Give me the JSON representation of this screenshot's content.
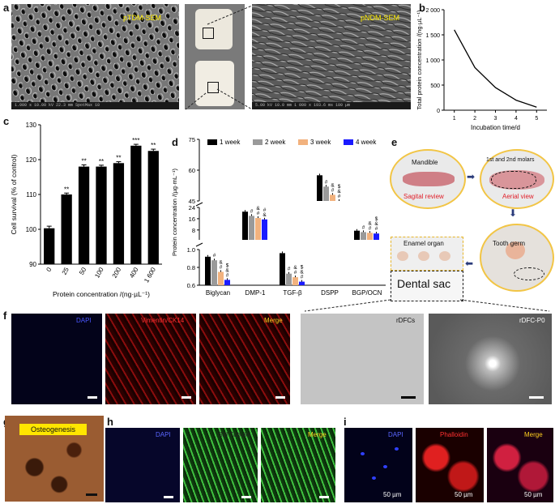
{
  "panels": {
    "a": "a",
    "b": "b",
    "c": "c",
    "d": "d",
    "e": "e",
    "f": "f",
    "g": "g",
    "h": "h",
    "i": "i"
  },
  "panel_a": {
    "left_title": "pTDM-SEM",
    "right_title": "pNDM-SEM",
    "left_meta": "1.000 s  10.00 kV  22.3 mm  SpotMax  10",
    "right_meta": "5.00 kV  10.0 mm  1 000 x  193.6 ms  100 µm"
  },
  "panel_e": {
    "mandible": "Mandible",
    "sagittal": "Sagital review",
    "molars": "1st and 2nd molars",
    "aerial": "Aerial view",
    "tooth_germ": "Tooth germ",
    "enamel": "Enamel organ",
    "dental_sac": "Dental sac"
  },
  "panel_f": {
    "dapi": "DAPI",
    "vimentin": "Vimentin/CK14",
    "merge": "Merge",
    "rdfcs": "rDFCs",
    "rdfc_p0": "rDFC-P0"
  },
  "panel_g": {
    "label": "Osteogenesis"
  },
  "panel_h": {
    "dapi": "DAPI",
    "tubulin": "βIII Tubulin",
    "merge": "Merge"
  },
  "panel_i": {
    "dapi": "DAPI",
    "phalloidin": "Phalloidin",
    "merge": "Merge",
    "scale": "50 µm"
  },
  "colors": {
    "yellow_label": "#ffee00",
    "week1": "#000000",
    "week2": "#9a9a9a",
    "week3": "#f2b27e",
    "week4": "#1a1aff"
  },
  "chart_data": [
    {
      "id": "b",
      "type": "line",
      "title": "",
      "xlabel": "Incubation time/d",
      "ylabel": "Total protein concentration /(ng·µL⁻¹)",
      "x": [
        1,
        2,
        3,
        4,
        5
      ],
      "y": [
        1600,
        850,
        450,
        200,
        60
      ],
      "xlim": [
        0.5,
        5.5
      ],
      "ylim": [
        0,
        2000
      ],
      "yticks": [
        0,
        500,
        1000,
        1500,
        2000
      ],
      "ytick_labels": [
        "0",
        "500",
        "1 000",
        "1 500",
        "2 000"
      ],
      "xticks": [
        "1",
        "2",
        "3",
        "4",
        "5"
      ]
    },
    {
      "id": "c",
      "type": "bar",
      "xlabel": "Protein concentration /(ng·µL⁻¹)",
      "ylabel": "Cell survival (% of control)",
      "categories": [
        "0",
        "25",
        "50",
        "100",
        "200",
        "400",
        "1 600"
      ],
      "values": [
        100.3,
        110,
        118,
        118,
        119,
        124,
        122.5
      ],
      "errors": [
        0.6,
        0.4,
        0.5,
        0.4,
        0.4,
        0.4,
        0.5
      ],
      "annotations": [
        "",
        "**",
        "**",
        "**",
        "**",
        "***",
        "**"
      ],
      "ylim": [
        90,
        130
      ],
      "yticks": [
        "90",
        "100",
        "110",
        "120",
        "130"
      ]
    },
    {
      "id": "d",
      "type": "bar",
      "xlabel": "",
      "ylabel": "Protein concentration /(µg·mL⁻¹)",
      "categories": [
        "Biglycan",
        "DMP-1",
        "TGF-β",
        "DSPP",
        "BGP/OCN"
      ],
      "series": [
        {
          "name": "1 week",
          "values": [
            0.92,
            21,
            0.96,
            57.5,
            7.5
          ]
        },
        {
          "name": "2 week",
          "values": [
            0.88,
            18,
            0.73,
            52,
            6.5
          ]
        },
        {
          "name": "3 week",
          "values": [
            0.75,
            16.5,
            0.69,
            48,
            6.0
          ]
        },
        {
          "name": "4 week",
          "values": [
            0.66,
            15.5,
            0.64,
            43,
            5.5
          ]
        }
      ],
      "annotations": {
        "Biglycan": [
          "",
          "#",
          "&\n#",
          "$\n&\n#"
        ],
        "DMP-1": [
          "",
          "#",
          "&\n#",
          "#\n&"
        ],
        "TGF-β": [
          "",
          "#",
          "&\n#",
          "$\n&\n#"
        ],
        "DSPP": [
          "",
          "#",
          "&\n#",
          "$\n&\n#"
        ],
        "BGP/OCN": [
          "",
          "#",
          "&\n#",
          "$\n&\n#"
        ]
      },
      "yticks": [
        "0.6",
        "0.8",
        "1.0",
        "8",
        "16",
        "24",
        "45",
        "60",
        "75"
      ],
      "broken_axis": true
    }
  ]
}
